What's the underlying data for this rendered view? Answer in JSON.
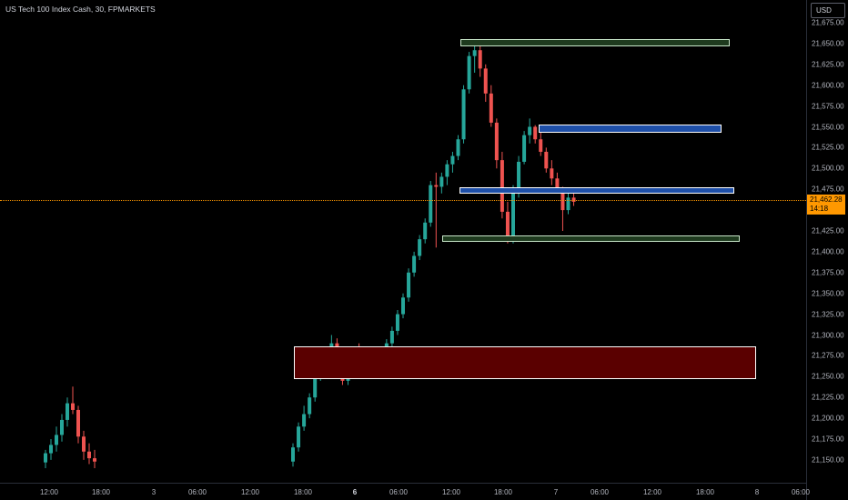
{
  "header": {
    "title": "US Tech 100 Index Cash, 30, FPMARKETS",
    "currency": "USD"
  },
  "price": {
    "current": "21,462.28",
    "countdown": "14:18"
  },
  "y_axis": {
    "min": 21150,
    "max": 21675,
    "ticks": [
      "21,675.00",
      "21,650.00",
      "21,625.00",
      "21,600.00",
      "21,575.00",
      "21,550.00",
      "21,525.00",
      "21,500.00",
      "21,475.00",
      "21,450.00",
      "21,425.00",
      "21,400.00",
      "21,375.00",
      "21,350.00",
      "21,325.00",
      "21,300.00",
      "21,275.00",
      "21,250.00",
      "21,225.00",
      "21,200.00",
      "21,175.00",
      "21,150.00"
    ]
  },
  "x_axis": {
    "ticks": [
      {
        "label": "12:00",
        "bold": false
      },
      {
        "label": "18:00",
        "bold": false
      },
      {
        "label": "3",
        "bold": false
      },
      {
        "label": "06:00",
        "bold": false
      },
      {
        "label": "12:00",
        "bold": false
      },
      {
        "label": "18:00",
        "bold": false
      },
      {
        "label": "6",
        "bold": true
      },
      {
        "label": "06:00",
        "bold": false
      },
      {
        "label": "12:00",
        "bold": false
      },
      {
        "label": "18:00",
        "bold": false
      },
      {
        "label": "7",
        "bold": false
      },
      {
        "label": "06:00",
        "bold": false
      },
      {
        "label": "12:00",
        "bold": false
      },
      {
        "label": "18:00",
        "bold": false
      },
      {
        "label": "8",
        "bold": false
      },
      {
        "label": "06:00",
        "bold": false
      }
    ]
  },
  "zones": [
    {
      "kind": "resistance",
      "price_top": 21655,
      "price_bottom": 21647,
      "fill": "#1e3a1e",
      "stroke": "#c8e6c9"
    },
    {
      "kind": "supply",
      "price_top": 21553,
      "price_bottom": 21543,
      "fill": "#1e4fa8",
      "stroke": "#ffffff"
    },
    {
      "kind": "pivot",
      "price_top": 21477,
      "price_bottom": 21470,
      "fill": "#1e4fa8",
      "stroke": "#ffffff"
    },
    {
      "kind": "support",
      "price_top": 21420,
      "price_bottom": 21412,
      "fill": "#1e3a1e",
      "stroke": "#c8e6c9"
    },
    {
      "kind": "demand",
      "price_top": 21286,
      "price_bottom": 21247,
      "fill": "#5a0000",
      "stroke": "#ffffff"
    }
  ],
  "colors": {
    "up": "#26a69a",
    "down": "#ef5350",
    "grid": "#0b0b0b",
    "accent": "#ff9800"
  },
  "chart_data": {
    "type": "candlestick",
    "series": [
      {
        "name": "US Tech 100 Index Cash",
        "ohlc": [
          [
            21147,
            21162,
            21140,
            21158
          ],
          [
            21158,
            21175,
            21150,
            21168
          ],
          [
            21168,
            21190,
            21160,
            21180
          ],
          [
            21180,
            21205,
            21172,
            21198
          ],
          [
            21198,
            21225,
            21190,
            21218
          ],
          [
            21218,
            21238,
            21205,
            21210
          ],
          [
            21210,
            21215,
            21170,
            21178
          ],
          [
            21178,
            21185,
            21150,
            21160
          ],
          [
            21160,
            21170,
            21145,
            21152
          ],
          [
            21152,
            21162,
            21140,
            21148
          ],
          [
            21148,
            21170,
            21142,
            21165
          ],
          [
            21165,
            21195,
            21160,
            21190
          ],
          [
            21190,
            21215,
            21185,
            21205
          ],
          [
            21205,
            21230,
            21200,
            21225
          ],
          [
            21225,
            21255,
            21220,
            21250
          ],
          [
            21250,
            21265,
            21245,
            21258
          ],
          [
            21258,
            21280,
            21250,
            21270
          ],
          [
            21270,
            21300,
            21265,
            21290
          ],
          [
            21290,
            21296,
            21260,
            21268
          ],
          [
            21268,
            21275,
            21240,
            21245
          ],
          [
            21245,
            21265,
            21240,
            21262
          ],
          [
            21262,
            21285,
            21255,
            21280
          ],
          [
            21280,
            21290,
            21255,
            21260
          ],
          [
            21260,
            21270,
            21248,
            21255
          ],
          [
            21255,
            21268,
            21250,
            21262
          ],
          [
            21262,
            21275,
            21255,
            21270
          ],
          [
            21270,
            21285,
            21265,
            21280
          ],
          [
            21280,
            21295,
            21275,
            21290
          ],
          [
            21290,
            21310,
            21285,
            21305
          ],
          [
            21305,
            21330,
            21300,
            21325
          ],
          [
            21325,
            21350,
            21320,
            21345
          ],
          [
            21345,
            21380,
            21340,
            21375
          ],
          [
            21375,
            21400,
            21370,
            21395
          ],
          [
            21395,
            21420,
            21390,
            21415
          ],
          [
            21415,
            21440,
            21410,
            21435
          ],
          [
            21435,
            21485,
            21430,
            21480
          ],
          [
            21480,
            21495,
            21405,
            21478
          ],
          [
            21478,
            21495,
            21470,
            21490
          ],
          [
            21490,
            21510,
            21480,
            21505
          ],
          [
            21505,
            21520,
            21495,
            21515
          ],
          [
            21515,
            21540,
            21510,
            21535
          ],
          [
            21535,
            21600,
            21530,
            21595
          ],
          [
            21595,
            21640,
            21590,
            21635
          ],
          [
            21635,
            21650,
            21615,
            21642
          ],
          [
            21642,
            21652,
            21610,
            21620
          ],
          [
            21620,
            21625,
            21580,
            21590
          ],
          [
            21590,
            21600,
            21550,
            21555
          ],
          [
            21555,
            21560,
            21500,
            21510
          ],
          [
            21510,
            21520,
            21440,
            21448
          ],
          [
            21448,
            21460,
            21410,
            21418
          ],
          [
            21418,
            21480,
            21410,
            21470
          ],
          [
            21470,
            21515,
            21465,
            21508
          ],
          [
            21508,
            21545,
            21505,
            21540
          ],
          [
            21540,
            21560,
            21530,
            21550
          ],
          [
            21550,
            21552,
            21530,
            21535
          ],
          [
            21535,
            21545,
            21515,
            21520
          ],
          [
            21520,
            21525,
            21495,
            21500
          ],
          [
            21500,
            21510,
            21480,
            21488
          ],
          [
            21488,
            21495,
            21470,
            21475
          ],
          [
            21475,
            21478,
            21425,
            21450
          ],
          [
            21450,
            21470,
            21445,
            21465
          ],
          [
            21465,
            21470,
            21455,
            21460
          ]
        ]
      }
    ]
  }
}
